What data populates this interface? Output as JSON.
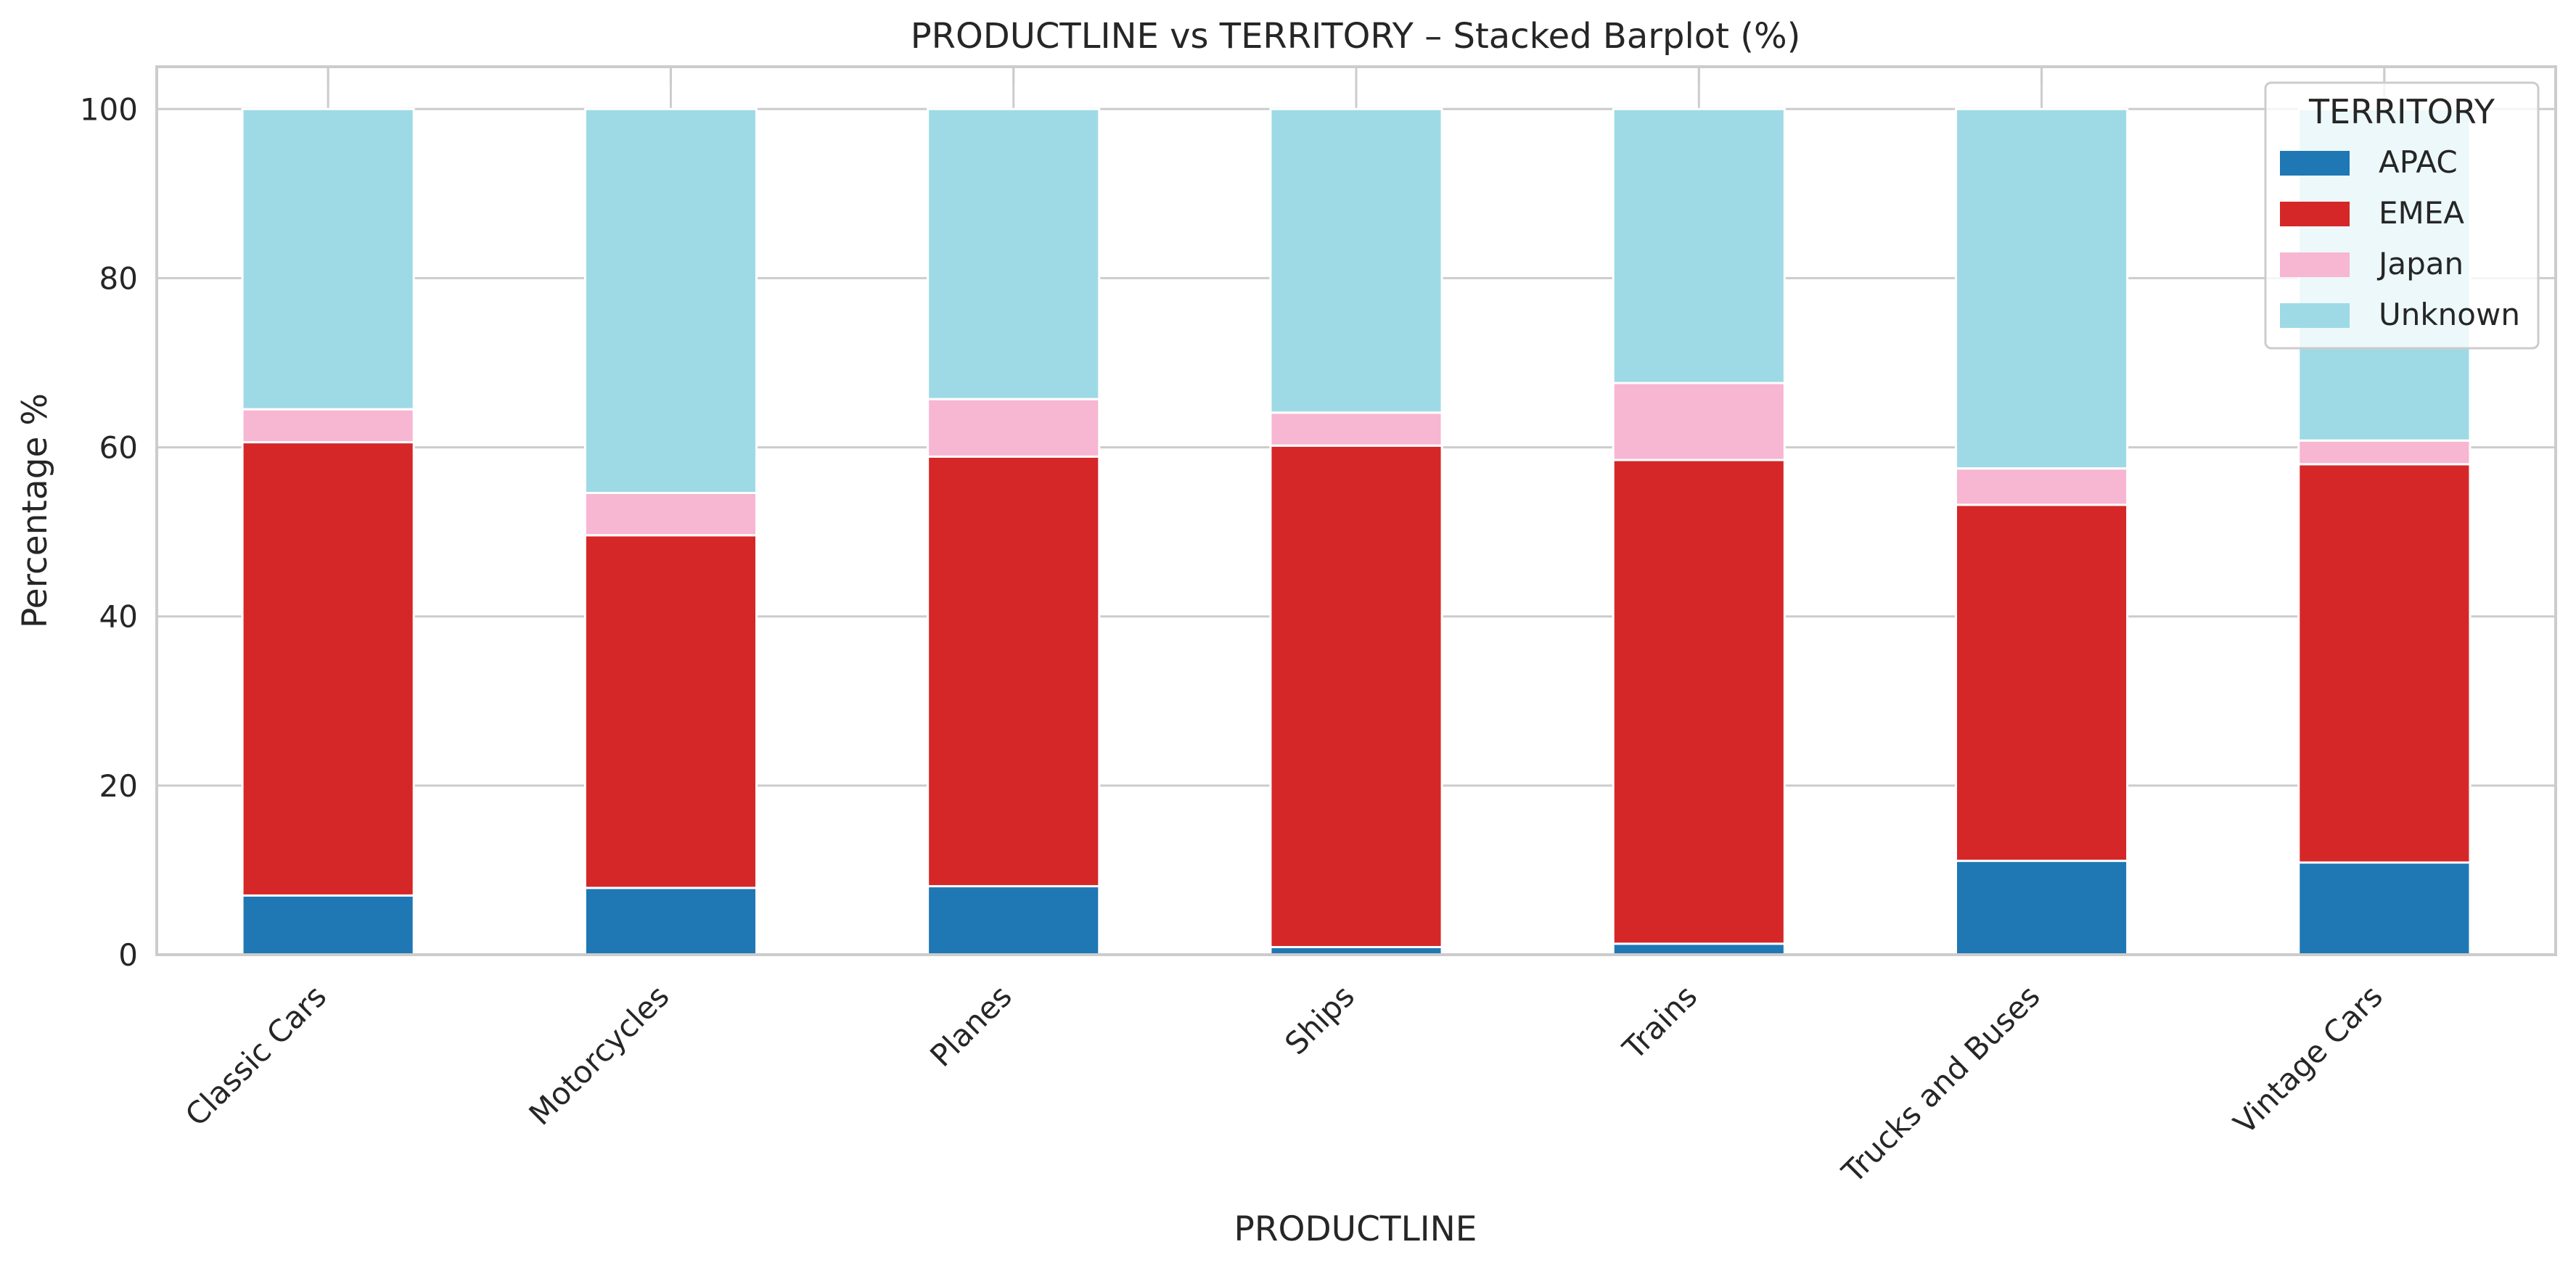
{
  "chart_data": {
    "type": "bar",
    "stacked": true,
    "title": "PRODUCTLINE vs TERRITORY – Stacked Barplot (%)",
    "xlabel": "PRODUCTLINE",
    "ylabel": "Percentage %",
    "ylim": [
      0,
      105
    ],
    "yticks": [
      0,
      20,
      40,
      60,
      80,
      100
    ],
    "grid": true,
    "legend": {
      "title": "TERRITORY",
      "placement": "top-right"
    },
    "categories": [
      "Classic Cars",
      "Motorcycles",
      "Planes",
      "Ships",
      "Trains",
      "Trucks and Buses",
      "Vintage Cars"
    ],
    "series": [
      {
        "name": "APAC",
        "color": "#1f77b4",
        "values": [
          7.0,
          7.9,
          8.1,
          0.9,
          1.3,
          11.1,
          10.9
        ]
      },
      {
        "name": "EMEA",
        "color": "#d62728",
        "values": [
          53.6,
          41.7,
          50.8,
          59.3,
          57.2,
          42.1,
          47.1
        ]
      },
      {
        "name": "Japan",
        "color": "#f7b6d2",
        "values": [
          3.9,
          5.0,
          6.8,
          3.9,
          9.1,
          4.3,
          2.8
        ]
      },
      {
        "name": "Unknown",
        "color": "#9edae5",
        "values": [
          35.5,
          45.4,
          34.3,
          35.9,
          32.4,
          42.5,
          39.2
        ]
      }
    ]
  }
}
